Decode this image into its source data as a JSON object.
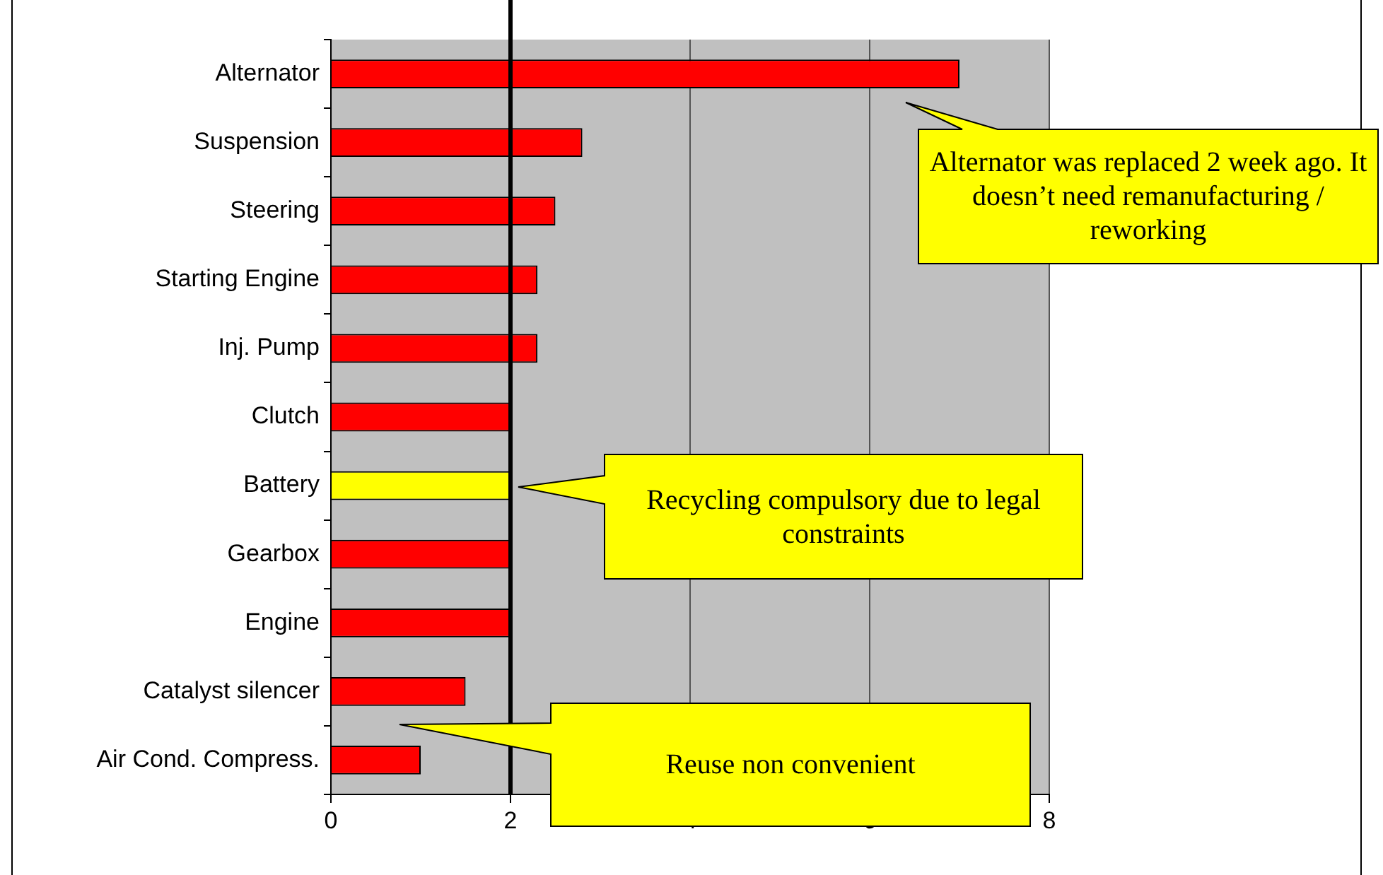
{
  "chart_data": {
    "type": "bar",
    "orientation": "horizontal",
    "categories": [
      "Alternator",
      "Suspension",
      "Steering",
      "Starting Engine",
      "Inj. Pump",
      "Clutch",
      "Battery",
      "Gearbox",
      "Engine",
      "Catalyst silencer",
      "Air Cond. Compress."
    ],
    "values": [
      7,
      2.8,
      2.5,
      2.3,
      2.3,
      2,
      2,
      2,
      2,
      1.5,
      1
    ],
    "colors": [
      "#ff0000",
      "#ff0000",
      "#ff0000",
      "#ff0000",
      "#ff0000",
      "#ff0000",
      "#ffff00",
      "#ff0000",
      "#ff0000",
      "#ff0000",
      "#ff0000"
    ],
    "xlim": [
      0,
      8
    ],
    "xticks": [
      0,
      2,
      4,
      6,
      8
    ],
    "grid": "x",
    "legend": false,
    "ref_lines": [
      {
        "axis": "x",
        "value": 2,
        "color": "#000000"
      }
    ],
    "annotations": [
      "Alternator was replaced 2 week ago. It doesn’t need remanufacturing / reworking",
      "Recycling compulsory due to legal constraints",
      "Reuse non convenient"
    ]
  }
}
